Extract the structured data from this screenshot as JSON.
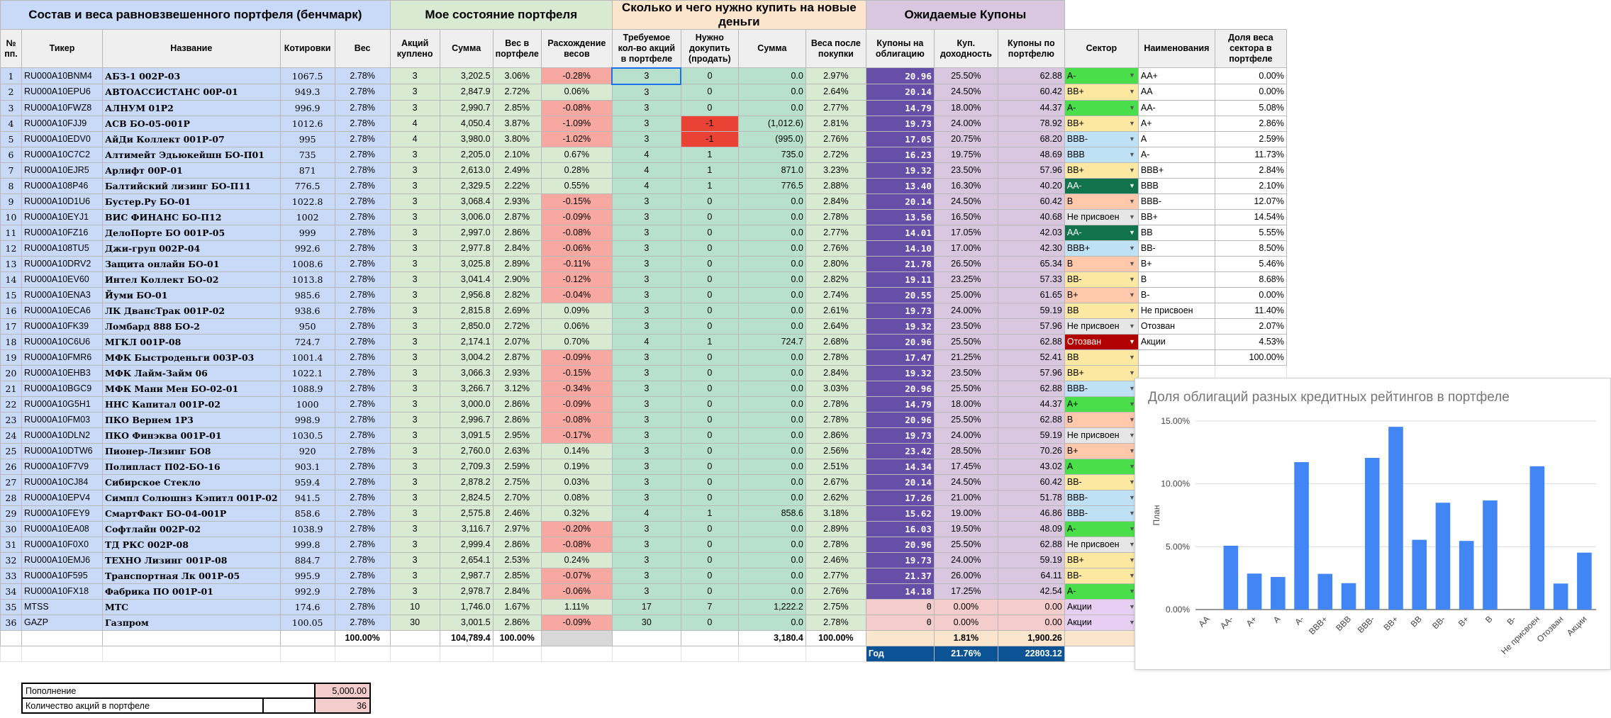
{
  "groups": {
    "benchmark": "Состав и веса равновзвешенного портфеля (бенчмарк)",
    "state": "Мое состояние портфеля",
    "buy": "Сколько и чего нужно купить на новые деньги",
    "coupons": "Ожидаемые Купоны"
  },
  "headers": [
    "№ пп.",
    "Тикер",
    "Название",
    "Котировки",
    "Вес",
    "Акций куплено",
    "Сумма",
    "Вес в портфеле",
    "Расхождение весов",
    "Требуемое кол-во акций в портфеле",
    "Нужно докупить (продать)",
    "Сумма",
    "Веса после покупки",
    "Купоны на облигацию",
    "Куп. доходность",
    "Купоны по портфелю",
    "Сектор",
    "Наименования",
    "Доля веса сектора в портфеле"
  ],
  "rows": [
    {
      "n": "1",
      "ticker": "RU000A10BNM4",
      "name": "АБЗ-1 002Р-03",
      "quote": "1067.5",
      "weight": "2.78%",
      "bought": "3",
      "sum": "3,202.5",
      "pw": "3.06%",
      "diff": "-0.28%",
      "req": "3",
      "buy": "0",
      "bsum": "0.0",
      "after": "2.97%",
      "coupon": "20.96",
      "yield": "25.50%",
      "pc": "62.88",
      "sector": "A-",
      "sc": "#4ade4a"
    },
    {
      "n": "2",
      "ticker": "RU000A10EPU6",
      "name": "АВТОАССИСТАНС 00Р-01",
      "quote": "949.3",
      "weight": "2.78%",
      "bought": "3",
      "sum": "2,847.9",
      "pw": "2.72%",
      "diff": "0.06%",
      "req": "3",
      "buy": "0",
      "bsum": "0.0",
      "after": "2.64%",
      "coupon": "20.14",
      "yield": "24.50%",
      "pc": "60.42",
      "sector": "BB+",
      "sc": "#fce8a0"
    },
    {
      "n": "3",
      "ticker": "RU000A10FWZ8",
      "name": "АЛНУМ 01Р2",
      "quote": "996.9",
      "weight": "2.78%",
      "bought": "3",
      "sum": "2,990.7",
      "pw": "2.85%",
      "diff": "-0.08%",
      "req": "3",
      "buy": "0",
      "bsum": "0.0",
      "after": "2.77%",
      "coupon": "14.79",
      "yield": "18.00%",
      "pc": "44.37",
      "sector": "A-",
      "sc": "#4ade4a"
    },
    {
      "n": "4",
      "ticker": "RU000A10FJJ9",
      "name": "АСВ БО-05-001Р",
      "quote": "1012.6",
      "weight": "2.78%",
      "bought": "4",
      "sum": "4,050.4",
      "pw": "3.87%",
      "diff": "-1.09%",
      "req": "3",
      "buy": "-1",
      "bsum": "(1,012.6)",
      "after": "2.81%",
      "coupon": "19.73",
      "yield": "24.00%",
      "pc": "78.92",
      "sector": "BB+",
      "sc": "#fce8a0"
    },
    {
      "n": "5",
      "ticker": "RU000A10EDV0",
      "name": "АйДи Коллект 001Р-07",
      "quote": "995",
      "weight": "2.78%",
      "bought": "4",
      "sum": "3,980.0",
      "pw": "3.80%",
      "diff": "-1.02%",
      "req": "3",
      "buy": "-1",
      "bsum": "(995.0)",
      "after": "2.76%",
      "coupon": "17.05",
      "yield": "20.75%",
      "pc": "68.20",
      "sector": "BBB-",
      "sc": "#bfe1f6"
    },
    {
      "n": "6",
      "ticker": "RU000A10C7C2",
      "name": "Алтимейт Эдьюкейшн БО-П01",
      "quote": "735",
      "weight": "2.78%",
      "bought": "3",
      "sum": "2,205.0",
      "pw": "2.10%",
      "diff": "0.67%",
      "req": "4",
      "buy": "1",
      "bsum": "735.0",
      "after": "2.72%",
      "coupon": "16.23",
      "yield": "19.75%",
      "pc": "48.69",
      "sector": "BBB",
      "sc": "#bfe1f6"
    },
    {
      "n": "7",
      "ticker": "RU000A10EJR5",
      "name": "Арлифт 00Р-01",
      "quote": "871",
      "weight": "2.78%",
      "bought": "3",
      "sum": "2,613.0",
      "pw": "2.49%",
      "diff": "0.28%",
      "req": "4",
      "buy": "1",
      "bsum": "871.0",
      "after": "3.23%",
      "coupon": "19.32",
      "yield": "23.50%",
      "pc": "57.96",
      "sector": "BB+",
      "sc": "#fce8a0"
    },
    {
      "n": "8",
      "ticker": "RU000A108P46",
      "name": "Балтийский лизинг БО-П11",
      "quote": "776.5",
      "weight": "2.78%",
      "bought": "3",
      "sum": "2,329.5",
      "pw": "2.22%",
      "diff": "0.55%",
      "req": "4",
      "buy": "1",
      "bsum": "776.5",
      "after": "2.88%",
      "coupon": "13.40",
      "yield": "16.30%",
      "pc": "40.20",
      "sector": "AA-",
      "sc": "#11734b"
    },
    {
      "n": "9",
      "ticker": "RU000A10D1U6",
      "name": "Бустер.Ру БО-01",
      "quote": "1022.8",
      "weight": "2.78%",
      "bought": "3",
      "sum": "3,068.4",
      "pw": "2.93%",
      "diff": "-0.15%",
      "req": "3",
      "buy": "0",
      "bsum": "0.0",
      "after": "2.84%",
      "coupon": "20.14",
      "yield": "24.50%",
      "pc": "60.42",
      "sector": "B",
      "sc": "#ffc8aa"
    },
    {
      "n": "10",
      "ticker": "RU000A10EYJ1",
      "name": "ВИС ФИНАНС БО-П12",
      "quote": "1002",
      "weight": "2.78%",
      "bought": "3",
      "sum": "3,006.0",
      "pw": "2.87%",
      "diff": "-0.09%",
      "req": "3",
      "buy": "0",
      "bsum": "0.0",
      "after": "2.78%",
      "coupon": "13.56",
      "yield": "16.50%",
      "pc": "40.68",
      "sector": "Не присвоен",
      "sc": "#e6e6e6"
    },
    {
      "n": "11",
      "ticker": "RU000A10FZ16",
      "name": "ДелоПорте БО 001Р-05",
      "quote": "999",
      "weight": "2.78%",
      "bought": "3",
      "sum": "2,997.0",
      "pw": "2.86%",
      "diff": "-0.08%",
      "req": "3",
      "buy": "0",
      "bsum": "0.0",
      "after": "2.77%",
      "coupon": "14.01",
      "yield": "17.05%",
      "pc": "42.03",
      "sector": "AA-",
      "sc": "#11734b"
    },
    {
      "n": "12",
      "ticker": "RU000A108TU5",
      "name": "Джи-груп 002Р-04",
      "quote": "992.6",
      "weight": "2.78%",
      "bought": "3",
      "sum": "2,977.8",
      "pw": "2.84%",
      "diff": "-0.06%",
      "req": "3",
      "buy": "0",
      "bsum": "0.0",
      "after": "2.76%",
      "coupon": "14.10",
      "yield": "17.00%",
      "pc": "42.30",
      "sector": "BBB+",
      "sc": "#bfe1f6"
    },
    {
      "n": "13",
      "ticker": "RU000A10DRV2",
      "name": "Защита онлайн БО-01",
      "quote": "1008.6",
      "weight": "2.78%",
      "bought": "3",
      "sum": "3,025.8",
      "pw": "2.89%",
      "diff": "-0.11%",
      "req": "3",
      "buy": "0",
      "bsum": "0.0",
      "after": "2.80%",
      "coupon": "21.78",
      "yield": "26.50%",
      "pc": "65.34",
      "sector": "B",
      "sc": "#ffc8aa"
    },
    {
      "n": "14",
      "ticker": "RU000A10EV60",
      "name": "Интел Коллект БО-02",
      "quote": "1013.8",
      "weight": "2.78%",
      "bought": "3",
      "sum": "3,041.4",
      "pw": "2.90%",
      "diff": "-0.12%",
      "req": "3",
      "buy": "0",
      "bsum": "0.0",
      "after": "2.82%",
      "coupon": "19.11",
      "yield": "23.25%",
      "pc": "57.33",
      "sector": "BB-",
      "sc": "#fce8a0"
    },
    {
      "n": "15",
      "ticker": "RU000A10ENA3",
      "name": "Йуми БО-01",
      "quote": "985.6",
      "weight": "2.78%",
      "bought": "3",
      "sum": "2,956.8",
      "pw": "2.82%",
      "diff": "-0.04%",
      "req": "3",
      "buy": "0",
      "bsum": "0.0",
      "after": "2.74%",
      "coupon": "20.55",
      "yield": "25.00%",
      "pc": "61.65",
      "sector": "B+",
      "sc": "#ffc8aa"
    },
    {
      "n": "16",
      "ticker": "RU000A10ECA6",
      "name": "ЛК ДвансТрак 001Р-02",
      "quote": "938.6",
      "weight": "2.78%",
      "bought": "3",
      "sum": "2,815.8",
      "pw": "2.69%",
      "diff": "0.09%",
      "req": "3",
      "buy": "0",
      "bsum": "0.0",
      "after": "2.61%",
      "coupon": "19.73",
      "yield": "24.00%",
      "pc": "59.19",
      "sector": "BB",
      "sc": "#fce8a0"
    },
    {
      "n": "17",
      "ticker": "RU000A10FK39",
      "name": "Ломбард 888 БО-2",
      "quote": "950",
      "weight": "2.78%",
      "bought": "3",
      "sum": "2,850.0",
      "pw": "2.72%",
      "diff": "0.06%",
      "req": "3",
      "buy": "0",
      "bsum": "0.0",
      "after": "2.64%",
      "coupon": "19.32",
      "yield": "23.50%",
      "pc": "57.96",
      "sector": "Не присвоен",
      "sc": "#e6e6e6"
    },
    {
      "n": "18",
      "ticker": "RU000A10C6U6",
      "name": "МГКЛ 001Р-08",
      "quote": "724.7",
      "weight": "2.78%",
      "bought": "3",
      "sum": "2,174.1",
      "pw": "2.07%",
      "diff": "0.70%",
      "req": "4",
      "buy": "1",
      "bsum": "724.7",
      "after": "2.68%",
      "coupon": "20.96",
      "yield": "25.50%",
      "pc": "62.88",
      "sector": "Отозван",
      "sc": "#b10202"
    },
    {
      "n": "19",
      "ticker": "RU000A10FMR6",
      "name": "МФК Быстроденьги 003Р-03",
      "quote": "1001.4",
      "weight": "2.78%",
      "bought": "3",
      "sum": "3,004.2",
      "pw": "2.87%",
      "diff": "-0.09%",
      "req": "3",
      "buy": "0",
      "bsum": "0.0",
      "after": "2.78%",
      "coupon": "17.47",
      "yield": "21.25%",
      "pc": "52.41",
      "sector": "BB",
      "sc": "#fce8a0"
    },
    {
      "n": "20",
      "ticker": "RU000A10EHB3",
      "name": "МФК Лайм-Займ 06",
      "quote": "1022.1",
      "weight": "2.78%",
      "bought": "3",
      "sum": "3,066.3",
      "pw": "2.93%",
      "diff": "-0.15%",
      "req": "3",
      "buy": "0",
      "bsum": "0.0",
      "after": "2.84%",
      "coupon": "19.32",
      "yield": "23.50%",
      "pc": "57.96",
      "sector": "BB+",
      "sc": "#fce8a0"
    },
    {
      "n": "21",
      "ticker": "RU000A10BGC9",
      "name": "МФК Мани Мен БО-02-01",
      "quote": "1088.9",
      "weight": "2.78%",
      "bought": "3",
      "sum": "3,266.7",
      "pw": "3.12%",
      "diff": "-0.34%",
      "req": "3",
      "buy": "0",
      "bsum": "0.0",
      "after": "3.03%",
      "coupon": "20.96",
      "yield": "25.50%",
      "pc": "62.88",
      "sector": "BBB-",
      "sc": "#bfe1f6"
    },
    {
      "n": "22",
      "ticker": "RU000A10G5H1",
      "name": "ННС Капитал 001Р-02",
      "quote": "1000",
      "weight": "2.78%",
      "bought": "3",
      "sum": "3,000.0",
      "pw": "2.86%",
      "diff": "-0.09%",
      "req": "3",
      "buy": "0",
      "bsum": "0.0",
      "after": "2.78%",
      "coupon": "14.79",
      "yield": "18.00%",
      "pc": "44.37",
      "sector": "A+",
      "sc": "#4ade4a"
    },
    {
      "n": "23",
      "ticker": "RU000A10FM03",
      "name": "ПКО Вернем 1Р3",
      "quote": "998.9",
      "weight": "2.78%",
      "bought": "3",
      "sum": "2,996.7",
      "pw": "2.86%",
      "diff": "-0.08%",
      "req": "3",
      "buy": "0",
      "bsum": "0.0",
      "after": "2.78%",
      "coupon": "20.96",
      "yield": "25.50%",
      "pc": "62.88",
      "sector": "B",
      "sc": "#ffc8aa"
    },
    {
      "n": "24",
      "ticker": "RU000A10DLN2",
      "name": "ПКО Финэква 001Р-01",
      "quote": "1030.5",
      "weight": "2.78%",
      "bought": "3",
      "sum": "3,091.5",
      "pw": "2.95%",
      "diff": "-0.17%",
      "req": "3",
      "buy": "0",
      "bsum": "0.0",
      "after": "2.86%",
      "coupon": "19.73",
      "yield": "24.00%",
      "pc": "59.19",
      "sector": "Не присвоен",
      "sc": "#e6e6e6"
    },
    {
      "n": "25",
      "ticker": "RU000A10DTW6",
      "name": "Пионер-Лизинг БО8",
      "quote": "920",
      "weight": "2.78%",
      "bought": "3",
      "sum": "2,760.0",
      "pw": "2.63%",
      "diff": "0.14%",
      "req": "3",
      "buy": "0",
      "bsum": "0.0",
      "after": "2.56%",
      "coupon": "23.42",
      "yield": "28.50%",
      "pc": "70.26",
      "sector": "B+",
      "sc": "#ffc8aa"
    },
    {
      "n": "26",
      "ticker": "RU000A10F7V9",
      "name": "Полипласт П02-БО-16",
      "quote": "903.1",
      "weight": "2.78%",
      "bought": "3",
      "sum": "2,709.3",
      "pw": "2.59%",
      "diff": "0.19%",
      "req": "3",
      "buy": "0",
      "bsum": "0.0",
      "after": "2.51%",
      "coupon": "14.34",
      "yield": "17.45%",
      "pc": "43.02",
      "sector": "A",
      "sc": "#4ade4a"
    },
    {
      "n": "27",
      "ticker": "RU000A10CJ84",
      "name": "Сибирское Стекло",
      "quote": "959.4",
      "weight": "2.78%",
      "bought": "3",
      "sum": "2,878.2",
      "pw": "2.75%",
      "diff": "0.03%",
      "req": "3",
      "buy": "0",
      "bsum": "0.0",
      "after": "2.67%",
      "coupon": "20.14",
      "yield": "24.50%",
      "pc": "60.42",
      "sector": "BB-",
      "sc": "#fce8a0"
    },
    {
      "n": "28",
      "ticker": "RU000A10EPV4",
      "name": "Симпл Солюшнз Кэпитл 001Р-02",
      "quote": "941.5",
      "weight": "2.78%",
      "bought": "3",
      "sum": "2,824.5",
      "pw": "2.70%",
      "diff": "0.08%",
      "req": "3",
      "buy": "0",
      "bsum": "0.0",
      "after": "2.62%",
      "coupon": "17.26",
      "yield": "21.00%",
      "pc": "51.78",
      "sector": "BBB-",
      "sc": "#bfe1f6"
    },
    {
      "n": "29",
      "ticker": "RU000A10FEY9",
      "name": "СмартФакт БО-04-001Р",
      "quote": "858.6",
      "weight": "2.78%",
      "bought": "3",
      "sum": "2,575.8",
      "pw": "2.46%",
      "diff": "0.32%",
      "req": "4",
      "buy": "1",
      "bsum": "858.6",
      "after": "3.18%",
      "coupon": "15.62",
      "yield": "19.00%",
      "pc": "46.86",
      "sector": "BBB-",
      "sc": "#bfe1f6"
    },
    {
      "n": "30",
      "ticker": "RU000A10EA08",
      "name": "Софтлайн 002Р-02",
      "quote": "1038.9",
      "weight": "2.78%",
      "bought": "3",
      "sum": "3,116.7",
      "pw": "2.97%",
      "diff": "-0.20%",
      "req": "3",
      "buy": "0",
      "bsum": "0.0",
      "after": "2.89%",
      "coupon": "16.03",
      "yield": "19.50%",
      "pc": "48.09",
      "sector": "A-",
      "sc": "#4ade4a"
    },
    {
      "n": "31",
      "ticker": "RU000A10F0X0",
      "name": "ТД РКС 002Р-08",
      "quote": "999.8",
      "weight": "2.78%",
      "bought": "3",
      "sum": "2,999.4",
      "pw": "2.86%",
      "diff": "-0.08%",
      "req": "3",
      "buy": "0",
      "bsum": "0.0",
      "after": "2.78%",
      "coupon": "20.96",
      "yield": "25.50%",
      "pc": "62.88",
      "sector": "Не присвоен",
      "sc": "#e6e6e6"
    },
    {
      "n": "32",
      "ticker": "RU000A10EMJ6",
      "name": "ТЕХНО Лизинг 001Р-08",
      "quote": "884.7",
      "weight": "2.78%",
      "bought": "3",
      "sum": "2,654.1",
      "pw": "2.53%",
      "diff": "0.24%",
      "req": "3",
      "buy": "0",
      "bsum": "0.0",
      "after": "2.46%",
      "coupon": "19.73",
      "yield": "24.00%",
      "pc": "59.19",
      "sector": "BB+",
      "sc": "#fce8a0"
    },
    {
      "n": "33",
      "ticker": "RU000A10F595",
      "name": "Транспортная Лк 001Р-05",
      "quote": "995.9",
      "weight": "2.78%",
      "bought": "3",
      "sum": "2,987.7",
      "pw": "2.85%",
      "diff": "-0.07%",
      "req": "3",
      "buy": "0",
      "bsum": "0.0",
      "after": "2.77%",
      "coupon": "21.37",
      "yield": "26.00%",
      "pc": "64.11",
      "sector": "BB-",
      "sc": "#fce8a0"
    },
    {
      "n": "34",
      "ticker": "RU000A10FX18",
      "name": "Фабрика ПО 001Р-01",
      "quote": "992.9",
      "weight": "2.78%",
      "bought": "3",
      "sum": "2,978.7",
      "pw": "2.84%",
      "diff": "-0.06%",
      "req": "3",
      "buy": "0",
      "bsum": "0.0",
      "after": "2.76%",
      "coupon": "14.18",
      "yield": "17.25%",
      "pc": "42.54",
      "sector": "A-",
      "sc": "#4ade4a"
    },
    {
      "n": "35",
      "ticker": "MTSS",
      "name": "МТС",
      "quote": "174.6",
      "weight": "2.78%",
      "bought": "10",
      "sum": "1,746.0",
      "pw": "1.67%",
      "diff": "1.11%",
      "req": "17",
      "buy": "7",
      "bsum": "1,222.2",
      "after": "2.75%",
      "coupon": "0",
      "yield": "0.00%",
      "pc": "0.00",
      "sector": "Акции",
      "sc": "#e6cff2"
    },
    {
      "n": "36",
      "ticker": "GAZP",
      "name": "Газпром",
      "quote": "100.05",
      "weight": "2.78%",
      "bought": "30",
      "sum": "3,001.5",
      "pw": "2.86%",
      "diff": "-0.09%",
      "req": "30",
      "buy": "0",
      "bsum": "0.0",
      "after": "2.78%",
      "coupon": "0",
      "yield": "0.00%",
      "pc": "0.00",
      "sector": "Акции",
      "sc": "#e6cff2"
    }
  ],
  "totals": {
    "weight": "100.00%",
    "sum": "104,789.4",
    "pw": "100.00%",
    "bsum": "3,180.4",
    "after": "100.00%",
    "yield": "1.81%",
    "pc": "1,900.26"
  },
  "year_row": {
    "label": "Год",
    "yield": "21.76%",
    "pc": "22803.12"
  },
  "sector_table": [
    {
      "name": "AA+",
      "share": "0.00%"
    },
    {
      "name": "AA",
      "share": "0.00%"
    },
    {
      "name": "AA-",
      "share": "5.08%"
    },
    {
      "name": "A+",
      "share": "2.86%"
    },
    {
      "name": "A",
      "share": "2.59%"
    },
    {
      "name": "A-",
      "share": "11.73%"
    },
    {
      "name": "BBB+",
      "share": "2.84%"
    },
    {
      "name": "BBB",
      "share": "2.10%"
    },
    {
      "name": "BBB-",
      "share": "12.07%"
    },
    {
      "name": "BB+",
      "share": "14.54%"
    },
    {
      "name": "BB",
      "share": "5.55%"
    },
    {
      "name": "BB-",
      "share": "8.50%"
    },
    {
      "name": "B+",
      "share": "5.46%"
    },
    {
      "name": "B",
      "share": "8.68%"
    },
    {
      "name": "B-",
      "share": "0.00%"
    },
    {
      "name": "Не присвоен",
      "share": "11.40%"
    },
    {
      "name": "Отозван",
      "share": "2.07%"
    },
    {
      "name": "Акции",
      "share": "4.53%"
    },
    {
      "name": "",
      "share": "100.00%"
    }
  ],
  "bottom": {
    "refill_label": "Пополнение",
    "refill_value": "5,000.00",
    "count_label": "Количество акций в портфеле",
    "count_value": "36"
  },
  "chart_data": {
    "type": "bar",
    "title": "Доля облигаций разных кредитных рейтингов в портфеле",
    "ylabel": "План",
    "categories": [
      "AA",
      "AA-",
      "A+",
      "A",
      "A-",
      "BBB+",
      "BBB",
      "BBB-",
      "BB+",
      "BB",
      "BB-",
      "B+",
      "B",
      "B-",
      "Не присвоен",
      "Отозван",
      "Акции"
    ],
    "values": [
      0.0,
      5.08,
      2.86,
      2.59,
      11.73,
      2.84,
      2.1,
      12.07,
      14.54,
      5.55,
      8.5,
      5.46,
      8.68,
      0.0,
      11.4,
      2.07,
      4.53
    ],
    "ylim": [
      0,
      15
    ],
    "yticks": [
      "0.00%",
      "5.00%",
      "10.00%",
      "15.00%"
    ],
    "bar_color": "#4285f4",
    "grid": true
  }
}
